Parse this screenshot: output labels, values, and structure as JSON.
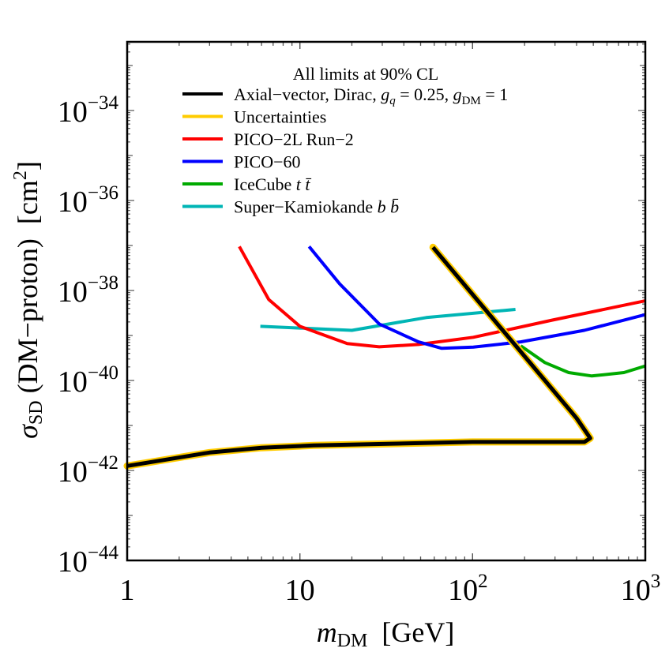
{
  "chart_data": {
    "type": "line",
    "title": "",
    "xlabel": "m_DM  [GeV]",
    "ylabel": "σ_SD (DM−proton)  [cm^2]",
    "xscale": "log",
    "yscale": "log",
    "xlim": [
      1,
      1000
    ],
    "ylim": [
      3.16e-45,
      3.16e-33
    ],
    "x_ticks": [
      {
        "value": 1,
        "label": "1"
      },
      {
        "value": 10,
        "label": "10"
      },
      {
        "value": 100,
        "label": "10",
        "exp": "2"
      },
      {
        "value": 1000,
        "label": "10",
        "exp": "3"
      }
    ],
    "y_ticks": [
      {
        "value": 1e-34,
        "label": "10",
        "exp": "−34"
      },
      {
        "value": 1e-36,
        "label": "10",
        "exp": "−36"
      },
      {
        "value": 1e-38,
        "label": "10",
        "exp": "−38"
      },
      {
        "value": 1e-40,
        "label": "10",
        "exp": "−40"
      },
      {
        "value": 1e-42,
        "label": "10",
        "exp": "−42"
      },
      {
        "value": 1e-44,
        "label": "10",
        "exp": "−44"
      }
    ],
    "grid": false,
    "legend_position": "upper center",
    "legend_title": "All limits at 90% CL",
    "series": [
      {
        "name": "Axial−vector, Dirac, g_q = 0.25, g_DM = 1",
        "color": "#000000",
        "band": {
          "name": "Uncertainties",
          "color": "#FFCC00"
        },
        "points": [
          [
            1,
            1.26e-42
          ],
          [
            3,
            2.5e-42
          ],
          [
            6,
            3.2e-42
          ],
          [
            12,
            3.6e-42
          ],
          [
            100,
            4.3e-42
          ],
          [
            444,
            4.3e-42
          ],
          [
            480,
            5.2e-42
          ],
          [
            400,
            1.45e-41
          ],
          [
            59,
            9.1e-38
          ]
        ]
      },
      {
        "name": "PICO−2L Run−2",
        "color": "#FF0000",
        "points": [
          [
            4.46,
            9.5e-38
          ],
          [
            6.6,
            6.3e-39
          ],
          [
            10,
            1.6e-39
          ],
          [
            18.8,
            6.6e-40
          ],
          [
            28.8,
            5.6e-40
          ],
          [
            48.6,
            6.3e-40
          ],
          [
            101,
            9.1e-40
          ],
          [
            290,
            2.2e-39
          ],
          [
            1000,
            5.9e-39
          ]
        ]
      },
      {
        "name": "PICO−60",
        "color": "#0000FF",
        "points": [
          [
            11.3,
            9.5e-38
          ],
          [
            17,
            1.4e-38
          ],
          [
            28.8,
            1.8e-39
          ],
          [
            48.6,
            7.2e-40
          ],
          [
            66,
            5.2e-40
          ],
          [
            101,
            5.5e-40
          ],
          [
            190,
            7.2e-40
          ],
          [
            443,
            1.3e-39
          ],
          [
            1000,
            2.9e-39
          ]
        ]
      },
      {
        "name": "IceCube t t̄",
        "color": "#00AA00",
        "points": [
          [
            190,
            5.9e-40
          ],
          [
            262,
            2.5e-40
          ],
          [
            360,
            1.5e-40
          ],
          [
            490,
            1.26e-40
          ],
          [
            752,
            1.5e-40
          ],
          [
            1000,
            2.1e-40
          ]
        ]
      },
      {
        "name": "Super−Kamiokande b b̄",
        "color": "#00B5B5",
        "points": [
          [
            5.9,
            1.6e-39
          ],
          [
            20,
            1.3e-39
          ],
          [
            54,
            2.5e-39
          ],
          [
            177,
            3.8e-39
          ]
        ]
      }
    ]
  },
  "legend": {
    "title": "All limits at 90% CL",
    "items": [
      {
        "label": "Axial−vector, Dirac, ",
        "gq": "g",
        "gq_sub": "q",
        "gq_val": " = 0.25, ",
        "gdm": "g",
        "gdm_sub": "DM",
        "gdm_val": " = 1",
        "color": "#000000"
      },
      {
        "label": "Uncertainties",
        "color": "#FFCC00"
      },
      {
        "label": "PICO−2L Run−2",
        "color": "#FF0000"
      },
      {
        "label": "PICO−60",
        "color": "#0000FF"
      },
      {
        "label": "IceCube ",
        "italic": "t t̄",
        "color": "#00AA00"
      },
      {
        "label": "Super−Kamiokande ",
        "italic": "b b̄",
        "color": "#00B5B5"
      }
    ]
  },
  "axes": {
    "x_title_var": "m",
    "x_title_sub": "DM",
    "x_title_unit": "  [GeV]",
    "y_title_var": "σ",
    "y_title_sub": "SD",
    "y_title_rest": " (DM−proton)  [cm",
    "y_title_exp": "2",
    "y_title_close": "]"
  }
}
